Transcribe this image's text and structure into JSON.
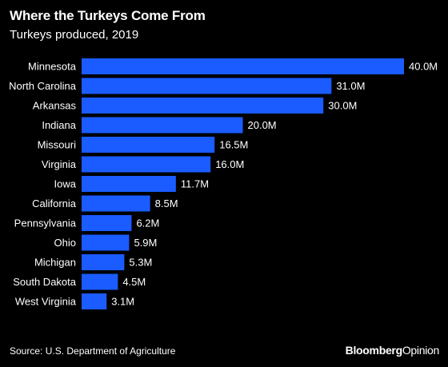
{
  "header": {
    "title": "Where the Turkeys Come From",
    "subtitle": "Turkeys produced, 2019"
  },
  "footer": {
    "source": "Source: U.S. Department of Agriculture",
    "brand_bold": "Bloomberg",
    "brand_light": "Opinion"
  },
  "colors": {
    "background": "#000000",
    "bar": "#1a5cff",
    "text": "#ffffff"
  },
  "chart_data": {
    "type": "bar",
    "orientation": "horizontal",
    "title": "Where the Turkeys Come From",
    "subtitle": "Turkeys produced, 2019",
    "categories": [
      "Minnesota",
      "North Carolina",
      "Arkansas",
      "Indiana",
      "Missouri",
      "Virginia",
      "Iowa",
      "California",
      "Pennsylvania",
      "Ohio",
      "Michigan",
      "South Dakota",
      "West Virginia"
    ],
    "values": [
      40.0,
      31.0,
      30.0,
      20.0,
      16.5,
      16.0,
      11.7,
      8.5,
      6.2,
      5.9,
      5.3,
      4.5,
      3.1
    ],
    "value_labels": [
      "40.0M",
      "31.0M",
      "30.0M",
      "20.0M",
      "16.5M",
      "16.0M",
      "11.7M",
      "8.5M",
      "6.2M",
      "5.9M",
      "5.3M",
      "4.5M",
      "3.1M"
    ],
    "xlim": [
      0,
      40
    ],
    "grid": false,
    "legend": "none"
  }
}
